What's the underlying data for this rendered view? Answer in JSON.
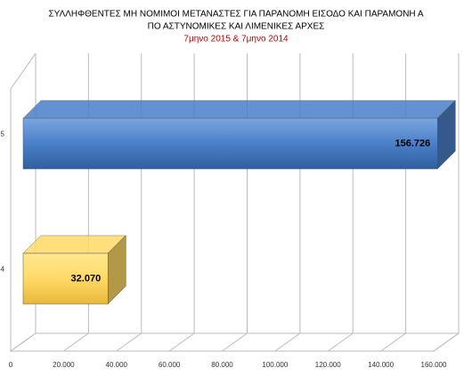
{
  "chart_data": {
    "type": "bar",
    "orientation": "horizontal",
    "title": [
      "ΣΥΛΛΗΦΘΕΝΤΕΣ ΜΗ ΝΟΜΙΜΟΙ ΜΕΤΑΝΑΣΤΕΣ ΓΙΑ ΠΑΡΑΝΟΜΗ ΕΙΣΟΔΟ ΚΑΙ ΠΑΡΑΜΟΝΗ Α",
      "ΠΟ ΑΣΤΥΝΟΜΙΚΕΣ ΚΑΙ ΛΙΜΕΝΙΚΕΣ ΑΡΧΕΣ"
    ],
    "subtitle": "7μηνο 2015 & 7μηνο 2014",
    "categories": [
      "5",
      "4"
    ],
    "values": [
      156726,
      32070
    ],
    "value_labels": [
      "156.726",
      "32.070"
    ],
    "colors": [
      "#4a80c8",
      "#ffd966"
    ],
    "xlim": [
      0,
      160000
    ],
    "xticks": [
      0,
      {
        "value": 20000,
        "label": "20.000"
      },
      {
        "value": 40000,
        "label": "40.000"
      },
      {
        "value": 60000,
        "label": "60.000"
      },
      {
        "value": 80000,
        "label": "80.000"
      },
      {
        "value": 100000,
        "label": "100.000"
      },
      {
        "value": 120000,
        "label": "120.000"
      },
      {
        "value": 140000,
        "label": "140.000"
      },
      {
        "value": 160000,
        "label": "160.000"
      }
    ],
    "grid": true
  }
}
